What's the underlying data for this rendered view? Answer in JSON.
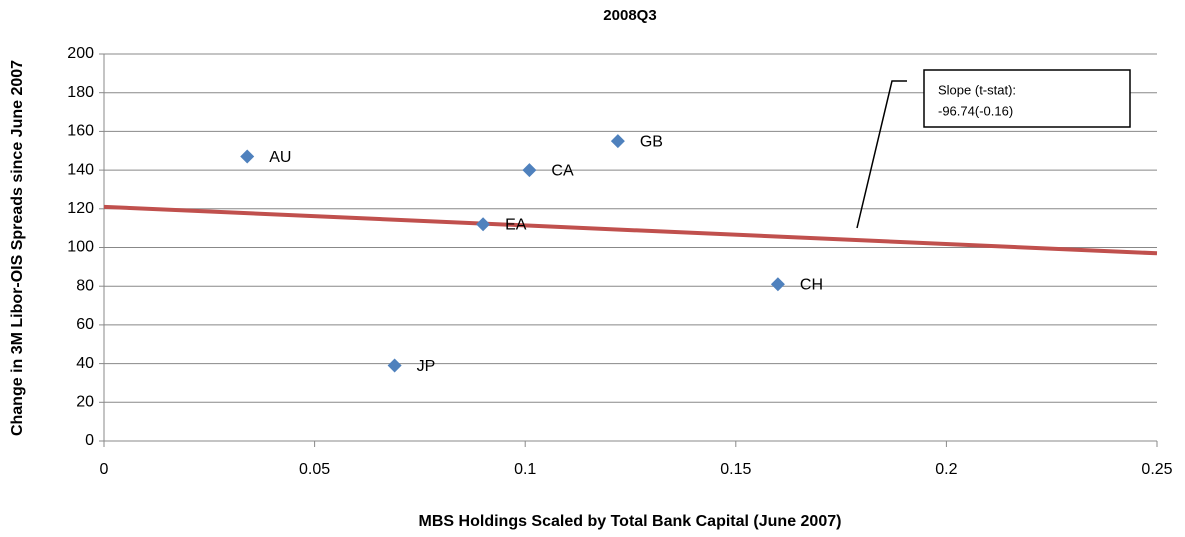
{
  "chart_data": {
    "type": "scatter",
    "title": "2008Q3",
    "x_label": "MBS Holdings Scaled by Total Bank Capital (June 2007)",
    "y_label": "Change in 3M Libor-OIS Spreads since June 2007",
    "labels": [
      "AU",
      "JP",
      "EA",
      "CA",
      "GB",
      "CH"
    ],
    "x": [
      0.034,
      0.069,
      0.09,
      0.101,
      0.122,
      0.16
    ],
    "values": [
      147,
      39,
      112,
      140,
      155,
      81
    ],
    "color": "#4f81bd",
    "trendline": {
      "x": [
        0,
        0.25
      ],
      "values": [
        121,
        97
      ],
      "color": "#c0504d"
    },
    "annotation": [
      "Slope (t-stat):",
      "-96.74(-0.16)"
    ],
    "xlim": [
      0,
      0.25
    ],
    "xticks": [
      0,
      0.05,
      0.1,
      0.15,
      0.2,
      0.25
    ],
    "ylim": [
      0,
      200
    ],
    "yticks": [
      0,
      20,
      40,
      60,
      80,
      100,
      120,
      140,
      160,
      180,
      200
    ],
    "grid": true
  }
}
